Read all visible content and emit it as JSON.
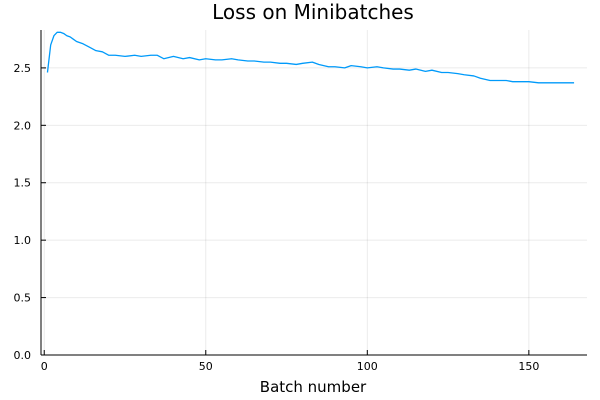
{
  "chart_data": {
    "type": "line",
    "title": "Loss on Minibatches",
    "xlabel": "Batch number",
    "ylabel": "",
    "xlim": [
      -1,
      168
    ],
    "ylim": [
      0,
      2.83
    ],
    "xticks": [
      0,
      50,
      100,
      150
    ],
    "yticks": [
      0.0,
      0.5,
      1.0,
      1.5,
      2.0,
      2.5
    ],
    "ytick_labels": [
      "0.0",
      "0.5",
      "1.0",
      "1.5",
      "2.0",
      "2.5"
    ],
    "grid": true,
    "legend": "none",
    "colors": {
      "series": "#009AFA"
    },
    "series": [
      {
        "x": [
          1,
          2,
          3,
          4,
          5,
          6,
          7,
          8,
          9,
          10,
          12,
          14,
          16,
          18,
          20,
          22,
          25,
          28,
          30,
          33,
          35,
          37,
          40,
          43,
          45,
          48,
          50,
          53,
          55,
          58,
          60,
          63,
          65,
          68,
          70,
          73,
          75,
          78,
          80,
          83,
          85,
          88,
          90,
          93,
          95,
          98,
          100,
          103,
          105,
          108,
          110,
          113,
          115,
          118,
          120,
          123,
          125,
          128,
          130,
          133,
          135,
          138,
          140,
          143,
          145,
          148,
          150,
          153,
          155,
          158,
          160,
          163,
          164
        ],
        "y": [
          2.46,
          2.7,
          2.78,
          2.81,
          2.81,
          2.8,
          2.78,
          2.77,
          2.75,
          2.73,
          2.71,
          2.68,
          2.65,
          2.64,
          2.61,
          2.61,
          2.6,
          2.61,
          2.6,
          2.61,
          2.61,
          2.58,
          2.6,
          2.58,
          2.59,
          2.57,
          2.58,
          2.57,
          2.57,
          2.58,
          2.57,
          2.56,
          2.56,
          2.55,
          2.55,
          2.54,
          2.54,
          2.53,
          2.54,
          2.55,
          2.53,
          2.51,
          2.51,
          2.5,
          2.52,
          2.51,
          2.5,
          2.51,
          2.5,
          2.49,
          2.49,
          2.48,
          2.49,
          2.47,
          2.48,
          2.46,
          2.46,
          2.45,
          2.44,
          2.43,
          2.41,
          2.39,
          2.39,
          2.39,
          2.38,
          2.38,
          2.38,
          2.37,
          2.37,
          2.37,
          2.37,
          2.37,
          2.37
        ]
      }
    ]
  }
}
